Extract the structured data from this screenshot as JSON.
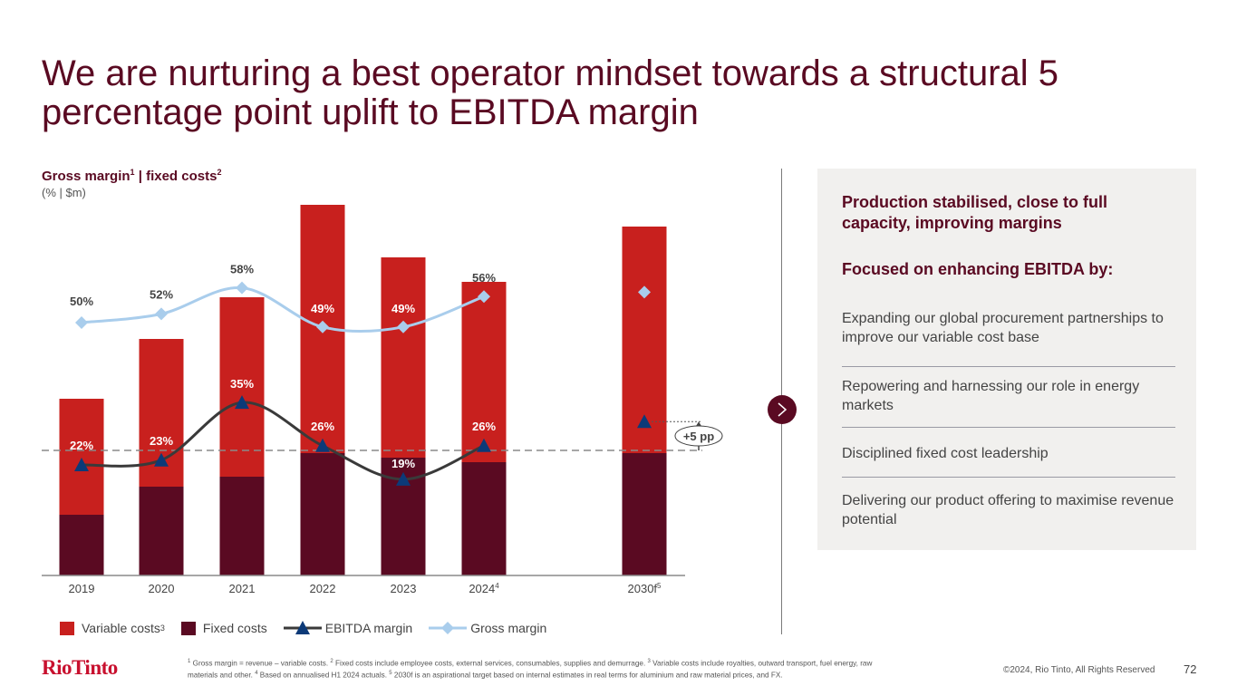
{
  "title": "We are nurturing a best operator mindset towards a structural 5 percentage point uplift to EBITDA margin",
  "chart_header": {
    "title": "Gross margin",
    "title_sup": "1",
    "title_sep": " | fixed costs",
    "title_sup2": "2",
    "unit": "(% | $m)"
  },
  "chart_data": {
    "type": "bar",
    "stacked": true,
    "title": "Gross margin | fixed costs",
    "subtitle": "(% | $m)",
    "categories": [
      "2019",
      "2020",
      "2021",
      "2022",
      "2023",
      "2024",
      "2030f"
    ],
    "category_sups": [
      "",
      "",
      "",
      "",
      "",
      "4",
      "5"
    ],
    "series": [
      {
        "name": "Fixed costs",
        "kind": "bar",
        "color": "#5a0a22",
        "values_relative": [
          67,
          98,
          109,
          135,
          130,
          125,
          135
        ]
      },
      {
        "name": "Variable costs",
        "kind": "bar",
        "color": "#c8201e",
        "values_relative": [
          128,
          163,
          198,
          274,
          221,
          199,
          250
        ]
      },
      {
        "name": "EBITDA margin",
        "kind": "line",
        "unit": "%",
        "color": "#3a3a3a",
        "marker_color": "#0c3a78",
        "values": [
          22,
          23,
          35,
          26,
          19,
          26,
          31
        ],
        "labels": [
          "22%",
          "23%",
          "35%",
          "26%",
          "19%",
          "26%",
          ""
        ]
      },
      {
        "name": "Gross margin",
        "kind": "line",
        "unit": "%",
        "color": "#a9cdec",
        "marker_color": "#a9cdec",
        "values": [
          50,
          52,
          58,
          49,
          49,
          56,
          57
        ],
        "labels": [
          "50%",
          "52%",
          "58%",
          "49%",
          "49%",
          "56%",
          ""
        ]
      }
    ],
    "note": "Bar values are unlabelled on the chart; values_relative are estimated relative magnitudes (no $m axis shown).",
    "reference_line": {
      "label": "+5 pp",
      "style": "dashed"
    },
    "legend": [
      {
        "label": "Variable costs",
        "sup": "3",
        "type": "box",
        "color": "#c8201e"
      },
      {
        "label": "Fixed costs",
        "sup": "",
        "type": "box",
        "color": "#5a0a22"
      },
      {
        "label": "EBITDA margin",
        "sup": "",
        "type": "line-triangle",
        "color": "#0c3a78"
      },
      {
        "label": "Gross margin",
        "sup": "",
        "type": "line-diamond",
        "color": "#a9cdec"
      }
    ],
    "legend_position": "bottom-left",
    "grid": false
  },
  "panel": {
    "heading1": "Production stabilised, close to full capacity, improving margins",
    "heading2": "Focused on enhancing EBITDA by:",
    "items": [
      "Expanding our global procurement partnerships to improve our variable cost base",
      "Repowering and harnessing our role in energy markets",
      "Disciplined fixed cost leadership",
      "Delivering our product offering to maximise revenue potential"
    ]
  },
  "footer": {
    "logo": "RioTinto",
    "footnotes": [
      {
        "sup": "1",
        "text": " Gross margin = revenue – variable costs. "
      },
      {
        "sup": "2",
        "text": " Fixed costs include employee costs, external services, consumables, supplies and demurrage. "
      },
      {
        "sup": "3",
        "text": " Variable costs include royalties, outward transport, fuel energy, raw materials and other. "
      },
      {
        "sup": "4",
        "text": " Based on annualised H1 2024 actuals. "
      },
      {
        "sup": "5",
        "text": " 2030f is an aspirational target based on internal estimates in real terms for aluminium and raw material prices, and FX."
      }
    ],
    "copyright": "©2024, Rio Tinto, All Rights Reserved",
    "page_number": "72"
  },
  "colors": {
    "brand": "#5a0a22",
    "variable": "#c8201e",
    "fixed": "#5a0a22",
    "ebitda_marker": "#0c3a78",
    "gross_line": "#a9cdec",
    "logo": "#c8102e"
  }
}
